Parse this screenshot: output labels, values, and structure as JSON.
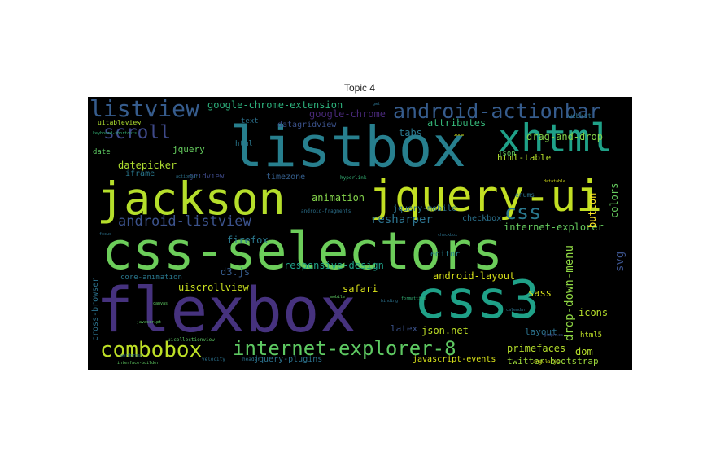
{
  "figure": {
    "title": "Topic 4"
  },
  "words": [
    {
      "text": "css-selectors",
      "color": "#6ccd5a"
    },
    {
      "text": "flexbox",
      "color": "#46327e"
    },
    {
      "text": "listbox",
      "color": "#277f8e"
    },
    {
      "text": "jackson",
      "color": "#b5de2b"
    },
    {
      "text": "jquery-ui",
      "color": "#c2df23"
    },
    {
      "text": "css3",
      "color": "#1fa188"
    },
    {
      "text": "xhtml",
      "color": "#1fa188"
    },
    {
      "text": "listview",
      "color": "#365c8d"
    },
    {
      "text": "android-actionbar",
      "color": "#365c8d"
    },
    {
      "text": "combobox",
      "color": "#bddf26"
    },
    {
      "text": "internet-explorer-8",
      "color": "#5ec962"
    },
    {
      "text": "scroll",
      "color": "#3e4989"
    },
    {
      "text": "css",
      "color": "#2a788e"
    },
    {
      "text": "android-listview",
      "color": "#3b528b"
    },
    {
      "text": "google-chrome-extension",
      "color": "#2db27d"
    },
    {
      "text": "google-chrome",
      "color": "#482878"
    },
    {
      "text": "attributes",
      "color": "#35b779"
    },
    {
      "text": "tabs",
      "color": "#2a788e"
    },
    {
      "text": "datagridview",
      "color": "#3b528b"
    },
    {
      "text": "datepicker",
      "color": "#addc30"
    },
    {
      "text": "jquery",
      "color": "#65cb5e"
    },
    {
      "text": "iframe",
      "color": "#2a788e"
    },
    {
      "text": "gridview",
      "color": "#3e4a89"
    },
    {
      "text": "timezone",
      "color": "#355f8d"
    },
    {
      "text": "animation",
      "color": "#84d44b"
    },
    {
      "text": "drag-and-drop",
      "color": "#84d44b"
    },
    {
      "text": "html-table",
      "color": "#b5de2b"
    },
    {
      "text": "resharper",
      "color": "#2c728e"
    },
    {
      "text": "jquery-mobile",
      "color": "#2c728e"
    },
    {
      "text": "checkbox",
      "color": "#2c728e"
    },
    {
      "text": "internet-explorer",
      "color": "#65cb5e"
    },
    {
      "text": "button",
      "color": "#fde725"
    },
    {
      "text": "colors",
      "color": "#65cb5e"
    },
    {
      "text": "firefox",
      "color": "#2a788e"
    },
    {
      "text": "responsive-design",
      "color": "#1fa188"
    },
    {
      "text": "editor",
      "color": "#277f8e"
    },
    {
      "text": "android-layout",
      "color": "#d8e219"
    },
    {
      "text": "drop-down-menu",
      "color": "#8fd744"
    },
    {
      "text": "svg",
      "color": "#3b528b"
    },
    {
      "text": "sass",
      "color": "#d8e219"
    },
    {
      "text": "d3.js",
      "color": "#365c8d"
    },
    {
      "text": "core-animation",
      "color": "#2a788e"
    },
    {
      "text": "uiscrollview",
      "color": "#cae11f"
    },
    {
      "text": "safari",
      "color": "#d8e219"
    },
    {
      "text": "icons",
      "color": "#b5de2b"
    },
    {
      "text": "layout",
      "color": "#2c728e"
    },
    {
      "text": "html5",
      "color": "#bddf26"
    },
    {
      "text": "latex",
      "color": "#3b528b"
    },
    {
      "text": "json.net",
      "color": "#bddf26"
    },
    {
      "text": "primefaces",
      "color": "#b5de2b"
    },
    {
      "text": "dom",
      "color": "#b5de2b"
    },
    {
      "text": "javascript-events",
      "color": "#d8e219"
    },
    {
      "text": "jquery-plugins",
      "color": "#2c728e"
    },
    {
      "text": "twitter-bootstrap",
      "color": "#9dd93b"
    },
    {
      "text": "cross-browser",
      "color": "#2c728e"
    },
    {
      "text": "html",
      "color": "#2a788e"
    },
    {
      "text": "text",
      "color": "#2c728e"
    },
    {
      "text": "date",
      "color": "#5ec962"
    },
    {
      "text": "json",
      "color": "#5ec962"
    },
    {
      "text": "enums",
      "color": "#2c728e"
    },
    {
      "text": "webkit",
      "color": "#2c728e"
    },
    {
      "text": "uitableview",
      "color": "#addc30"
    },
    {
      "text": "android-fragments",
      "color": "#2c728e"
    },
    {
      "text": "formatting",
      "color": "#35b779"
    },
    {
      "text": "hyperlink",
      "color": "#35b779"
    },
    {
      "text": "calendar",
      "color": "#2c728e"
    },
    {
      "text": "graphics",
      "color": "#3b528b"
    },
    {
      "text": "header",
      "color": "#2c728e"
    },
    {
      "text": "velocity",
      "color": "#2c728e"
    },
    {
      "text": "angularjs",
      "color": "#d8e219"
    },
    {
      "text": "wordpress",
      "color": "#2c728e"
    },
    {
      "text": "uicollectionview",
      "color": "#5ec962"
    },
    {
      "text": "interface-builder",
      "color": "#5ec962"
    },
    {
      "text": "keyboard-shortcuts",
      "color": "#35b779"
    },
    {
      "text": "mobile",
      "color": "#5ec962"
    },
    {
      "text": "binding",
      "color": "#2c728e"
    },
    {
      "text": "datatable",
      "color": "#d8e219"
    },
    {
      "text": "checkbox",
      "color": "#2c728e"
    },
    {
      "text": "actionbar",
      "color": "#2c728e"
    },
    {
      "text": "gwt",
      "color": "#2c728e"
    },
    {
      "text": "canvas",
      "color": "#5ec962"
    },
    {
      "text": "javascript",
      "color": "#5ec962"
    },
    {
      "text": "focus",
      "color": "#2c728e"
    },
    {
      "text": "zoom",
      "color": "#d8e219"
    }
  ]
}
